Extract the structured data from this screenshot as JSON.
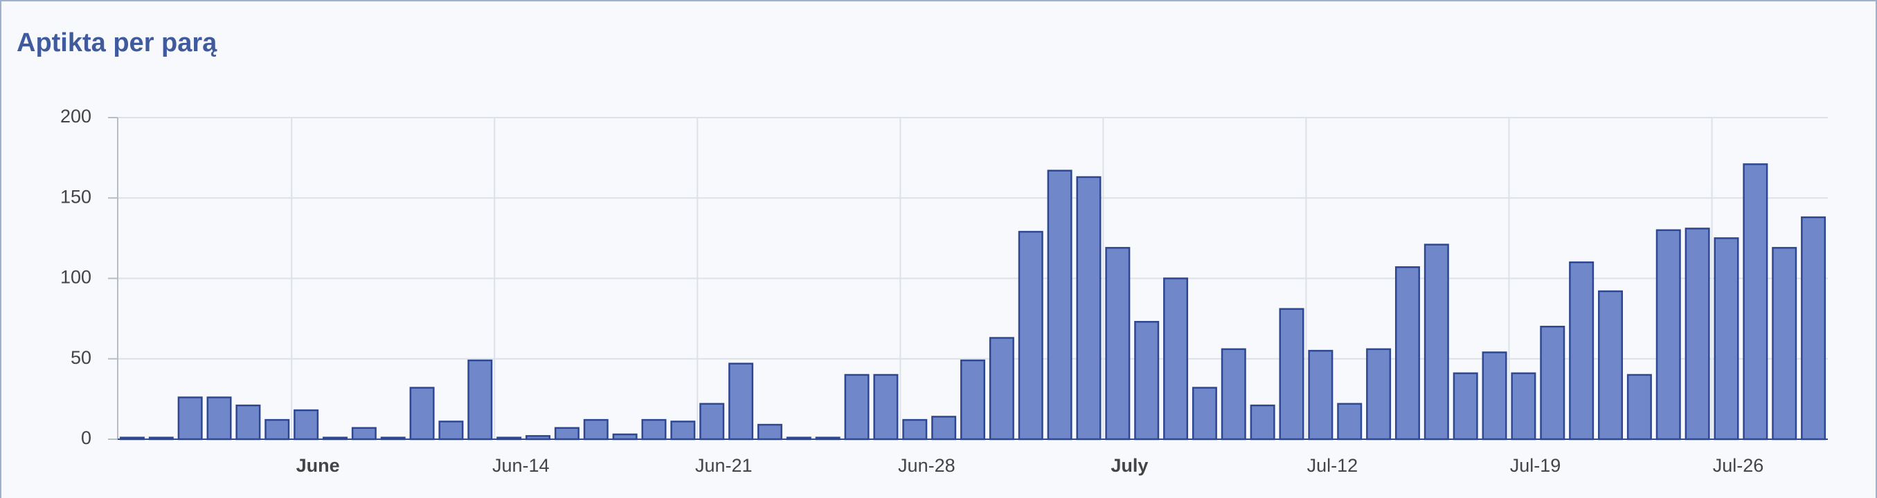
{
  "chart_data": {
    "type": "bar",
    "title": "Aptikta per parą",
    "categories": [
      null,
      null,
      null,
      null,
      null,
      null,
      "June",
      null,
      null,
      null,
      null,
      null,
      null,
      "Jun-14",
      null,
      null,
      null,
      null,
      null,
      null,
      "Jun-21",
      null,
      null,
      null,
      null,
      null,
      null,
      "Jun-28",
      null,
      null,
      null,
      null,
      null,
      null,
      "July",
      null,
      null,
      null,
      null,
      null,
      null,
      "Jul-12",
      null,
      null,
      null,
      null,
      null,
      null,
      "Jul-19",
      null,
      null,
      null,
      null,
      null,
      null,
      "Jul-26",
      null,
      null,
      null
    ],
    "values": [
      1,
      1,
      26,
      26,
      21,
      12,
      18,
      1,
      7,
      1,
      32,
      11,
      49,
      1,
      2,
      7,
      12,
      3,
      12,
      11,
      22,
      47,
      9,
      1,
      1,
      40,
      40,
      12,
      14,
      49,
      63,
      129,
      167,
      163,
      119,
      73,
      100,
      32,
      56,
      21,
      81,
      55,
      22,
      56,
      107,
      121,
      41,
      54,
      41,
      70,
      110,
      92,
      40,
      130,
      131,
      125,
      171,
      119,
      138
    ],
    "color": "#7088c9",
    "ylim": [
      0,
      200
    ],
    "yticks": [
      0,
      50,
      100,
      150,
      200
    ],
    "grid": true
  }
}
